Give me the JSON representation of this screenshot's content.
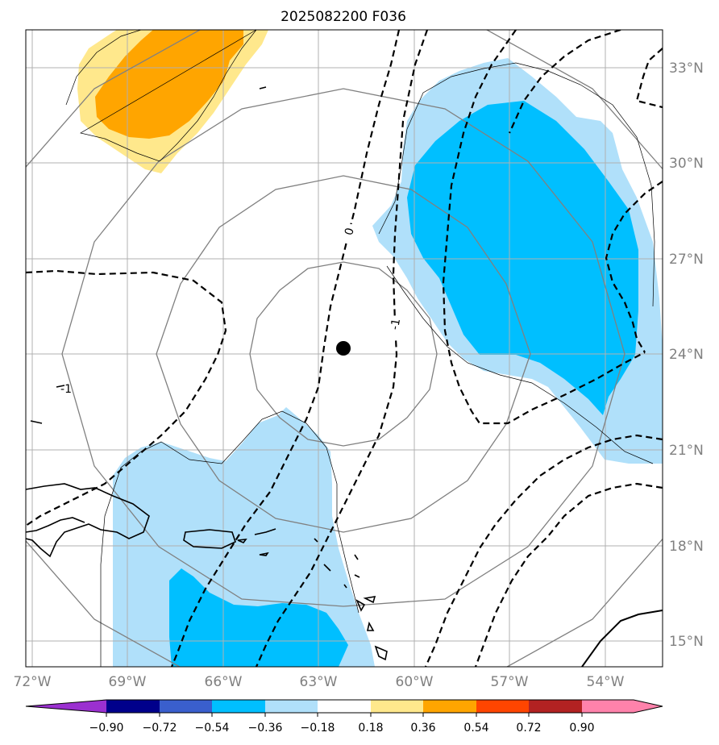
{
  "title": "2025082200 F036",
  "map": {
    "lon_range": [
      -72.0,
      -52.5
    ],
    "lat_range": [
      14.25,
      34.25
    ],
    "lon_ticks": [
      -72,
      -69,
      -66,
      -63,
      -60,
      -57,
      -54
    ],
    "lat_ticks": [
      15,
      18,
      21,
      24,
      27,
      30,
      33
    ],
    "lon_labels": [
      "72°W",
      "69°W",
      "66°W",
      "63°W",
      "60°W",
      "57°W",
      "54°W"
    ],
    "lat_labels": [
      "15°N",
      "18°N",
      "21°N",
      "24°N",
      "27°N",
      "30°N",
      "33°N"
    ],
    "storm_center": {
      "lon": -62.2,
      "lat": 24.2
    },
    "range_ring_radii_deg": [
      3,
      6,
      9,
      12
    ],
    "contour_labels": [
      {
        "text": "0",
        "lon": -62.0,
        "lat": 28.0
      },
      {
        "text": "-1",
        "lon": -60.2,
        "lat": 25.0
      },
      {
        "text": "-1",
        "lon": -71.2,
        "lat": 23.5
      }
    ]
  },
  "colorbar": {
    "bounds": [
      "−0.90",
      "−0.72",
      "−0.54",
      "−0.36",
      "−0.18",
      "0.18",
      "0.36",
      "0.54",
      "0.72",
      "0.90"
    ],
    "colors": [
      "#9b30d0",
      "#00008b",
      "#3a5fcd",
      "#00bfff",
      "#b0e0fa",
      "#ffffff",
      "#ffe88c",
      "#ffa500",
      "#ff4500",
      "#b22222",
      "#ff82ab"
    ]
  },
  "colors": {
    "light_blue": "#b0e0fa",
    "deep_sky_blue": "#00bfff",
    "light_yellow": "#ffe88c",
    "orange": "#ffa500"
  }
}
